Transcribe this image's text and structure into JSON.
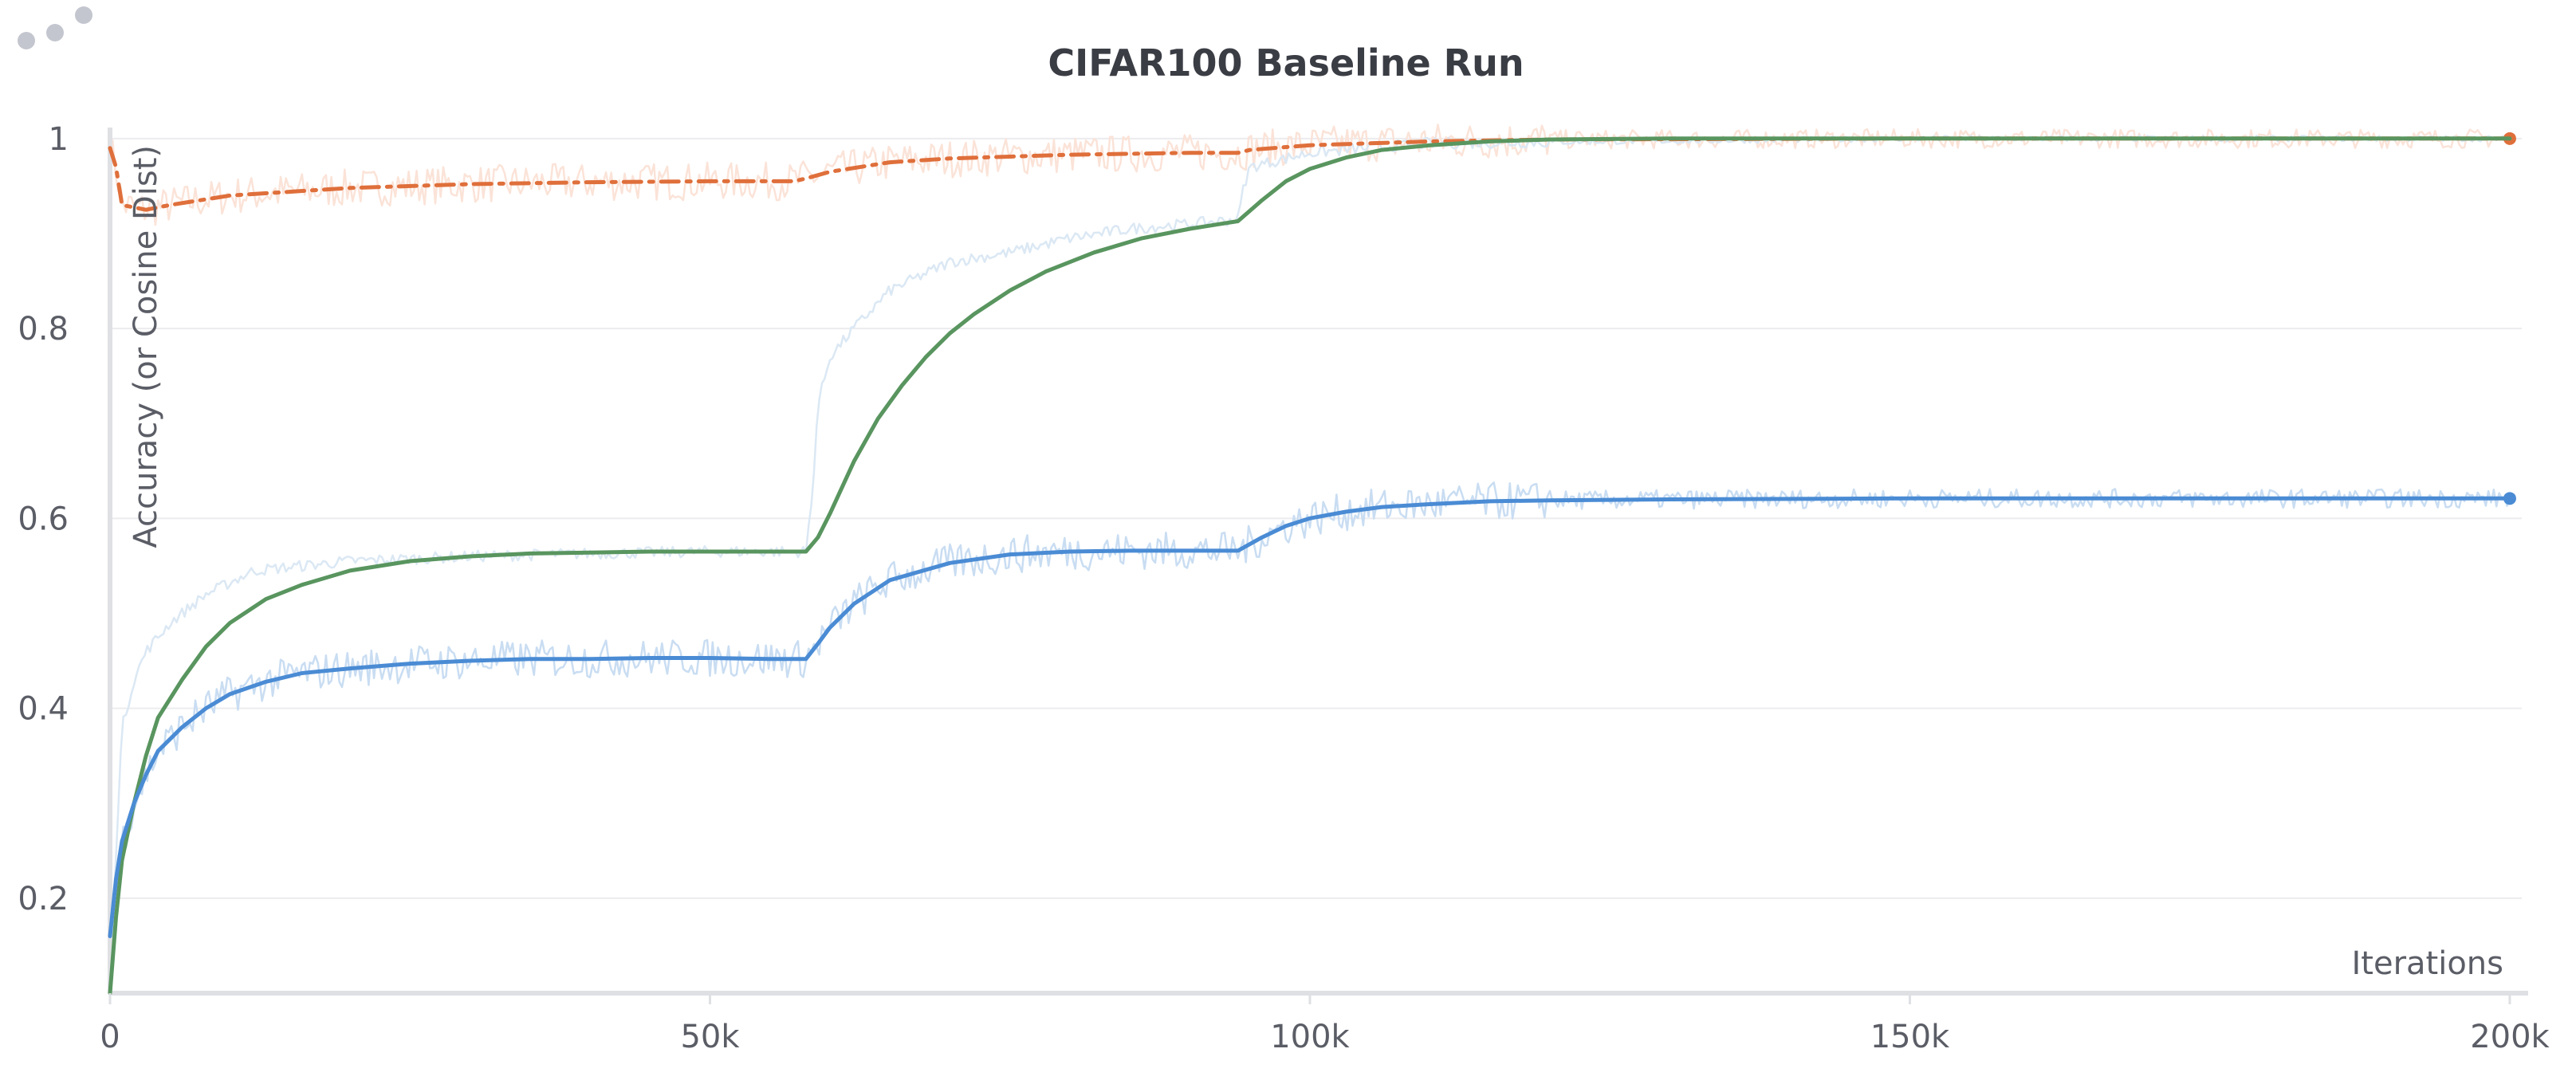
{
  "panel": {
    "menu_icon": "drag-dots-icon"
  },
  "colors": {
    "background": "#ffffff",
    "grid": "#ececef",
    "axis": "#dfe0e4",
    "text": "#5b5d66",
    "title": "#3b3d45",
    "series_orange": "#df6f3b",
    "series_green": "#59955f",
    "series_blue": "#4a8bd4",
    "raw_orange": "#fbe3d8",
    "raw_lightblue": "#dbe8f4",
    "raw_blue": "#c9ddf2"
  },
  "chart_data": {
    "type": "line",
    "title": "CIFAR100 Baseline Run",
    "xlabel": "Iterations",
    "ylabel": "Accuracy (or Cosine Dist)",
    "xlim": [
      0,
      201000
    ],
    "ylim": [
      0.1,
      1.02
    ],
    "x_ticks": [
      0,
      50000,
      100000,
      150000,
      200000
    ],
    "x_tick_labels": [
      "0",
      "50k",
      "100k",
      "150k",
      "200k"
    ],
    "y_ticks": [
      0.2,
      0.4,
      0.6,
      0.8,
      1.0
    ],
    "y_tick_labels": [
      "0.2",
      "0.4",
      "0.6",
      "0.8",
      "1"
    ],
    "grid": true,
    "legend": "none",
    "series": [
      {
        "color": "#df6f3b",
        "dash": "dashdot",
        "end_marker": true,
        "raw_color": "#fbe3d8",
        "raw_noise": 0.02,
        "x": [
          0,
          500,
          1000,
          3000,
          5000,
          10000,
          20000,
          30000,
          40000,
          50000,
          57000,
          58000,
          60000,
          65000,
          70000,
          80000,
          90000,
          94000,
          95000,
          100000,
          110000,
          120000,
          150000,
          200000
        ],
        "values": [
          0.99,
          0.97,
          0.93,
          0.925,
          0.93,
          0.94,
          0.948,
          0.952,
          0.954,
          0.955,
          0.955,
          0.958,
          0.965,
          0.975,
          0.979,
          0.983,
          0.985,
          0.985,
          0.988,
          0.993,
          0.997,
          0.999,
          1.0,
          1.0
        ]
      },
      {
        "color": "#59955f",
        "dash": "solid",
        "end_marker": false,
        "raw_color": "#dbe8f4",
        "raw_noise": 0.006,
        "raw_x": [
          0,
          1000,
          2000,
          3000,
          5000,
          8000,
          12000,
          20000,
          30000,
          40000,
          50000,
          58000,
          58500,
          59000,
          60000,
          62000,
          65000,
          70000,
          75000,
          80000,
          85000,
          90000,
          94000,
          94500,
          95000,
          100000,
          110000,
          150000,
          200000
        ],
        "raw_values": [
          0.12,
          0.38,
          0.43,
          0.46,
          0.49,
          0.52,
          0.545,
          0.555,
          0.56,
          0.563,
          0.565,
          0.565,
          0.62,
          0.72,
          0.77,
          0.8,
          0.84,
          0.87,
          0.88,
          0.895,
          0.905,
          0.91,
          0.915,
          0.95,
          0.97,
          0.985,
          0.995,
          1.0,
          1.0
        ],
        "x": [
          0,
          500,
          1000,
          2000,
          3000,
          4000,
          6000,
          8000,
          10000,
          13000,
          16000,
          20000,
          25000,
          30000,
          35000,
          40000,
          45000,
          50000,
          55000,
          58000,
          59000,
          60000,
          62000,
          64000,
          66000,
          68000,
          70000,
          72000,
          75000,
          78000,
          82000,
          86000,
          90000,
          94000,
          96000,
          98000,
          100000,
          103000,
          106000,
          110000,
          115000,
          120000,
          130000,
          150000,
          200000
        ],
        "values": [
          0.1,
          0.18,
          0.24,
          0.3,
          0.35,
          0.39,
          0.43,
          0.465,
          0.49,
          0.515,
          0.53,
          0.545,
          0.555,
          0.56,
          0.563,
          0.564,
          0.565,
          0.565,
          0.565,
          0.565,
          0.58,
          0.605,
          0.66,
          0.705,
          0.74,
          0.77,
          0.795,
          0.815,
          0.84,
          0.86,
          0.88,
          0.895,
          0.905,
          0.913,
          0.935,
          0.955,
          0.968,
          0.98,
          0.988,
          0.993,
          0.997,
          0.999,
          1.0,
          1.0,
          1.0
        ]
      },
      {
        "color": "#4a8bd4",
        "dash": "solid",
        "end_marker": true,
        "raw_color": "#c9ddf2",
        "raw_noise": 0.02,
        "x": [
          0,
          500,
          1000,
          2000,
          3000,
          4000,
          6000,
          8000,
          10000,
          13000,
          16000,
          20000,
          25000,
          30000,
          35000,
          40000,
          45000,
          50000,
          55000,
          58000,
          59000,
          60000,
          62000,
          65000,
          70000,
          75000,
          80000,
          85000,
          90000,
          94000,
          96000,
          98000,
          100000,
          103000,
          106000,
          110000,
          115000,
          120000,
          130000,
          150000,
          170000,
          200000
        ],
        "values": [
          0.16,
          0.22,
          0.26,
          0.3,
          0.33,
          0.355,
          0.38,
          0.4,
          0.415,
          0.428,
          0.437,
          0.442,
          0.447,
          0.45,
          0.452,
          0.452,
          0.453,
          0.453,
          0.452,
          0.452,
          0.468,
          0.485,
          0.51,
          0.535,
          0.553,
          0.562,
          0.565,
          0.566,
          0.566,
          0.566,
          0.58,
          0.592,
          0.6,
          0.607,
          0.612,
          0.615,
          0.618,
          0.619,
          0.62,
          0.621,
          0.621,
          0.621
        ]
      }
    ]
  }
}
